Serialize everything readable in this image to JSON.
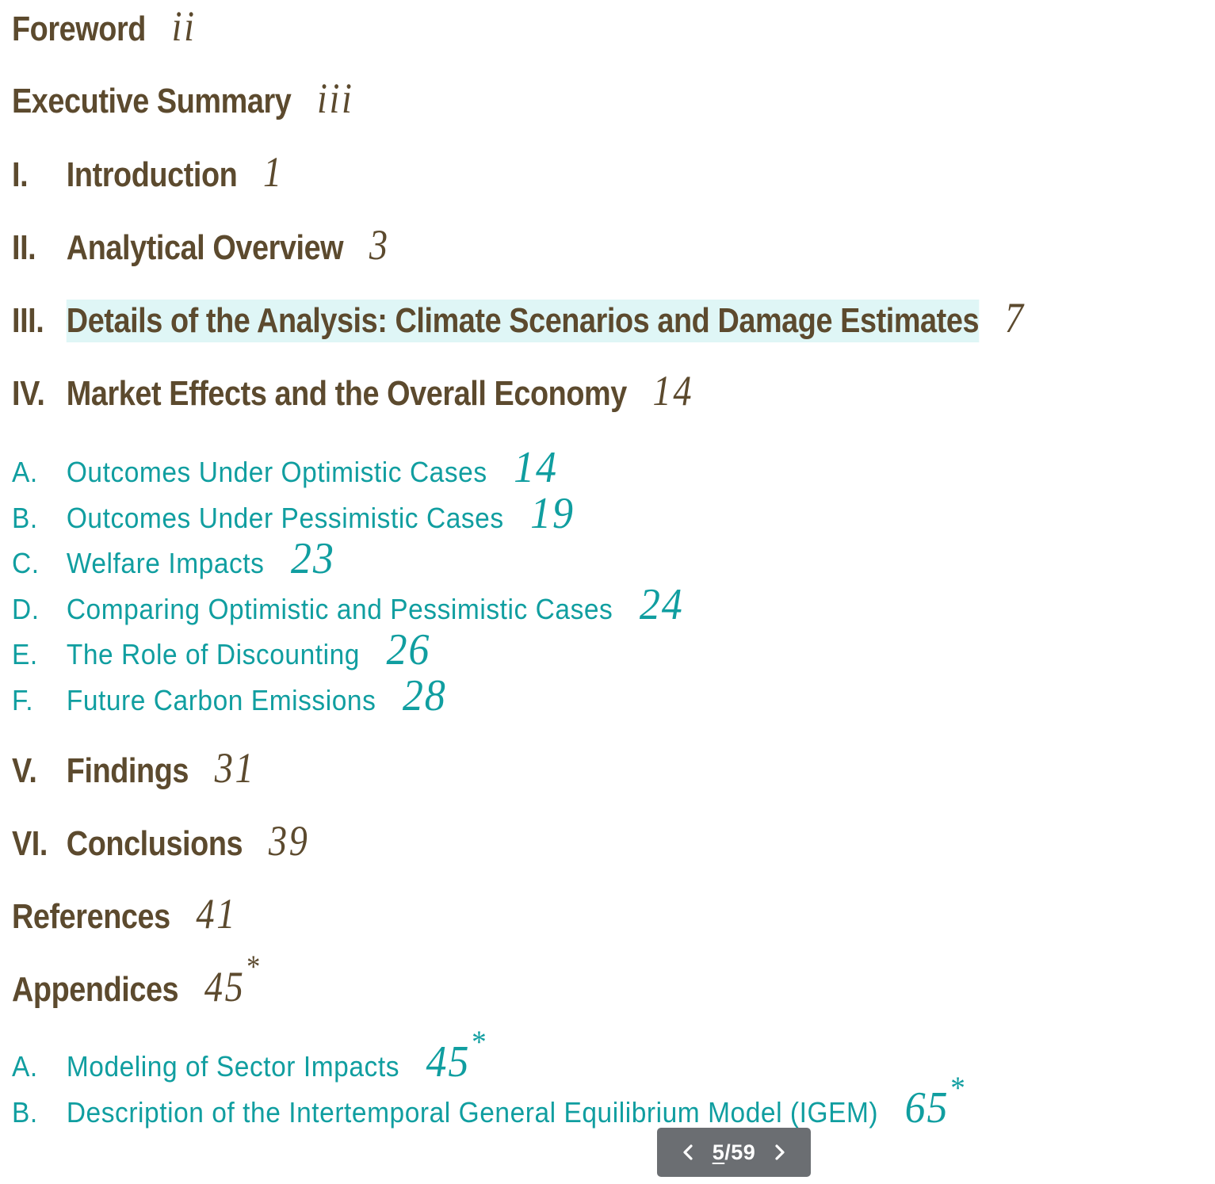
{
  "toc": {
    "foreword": {
      "label": "Foreword",
      "page": "ii"
    },
    "executive_summary": {
      "label": "Executive Summary",
      "page": "iii"
    },
    "sections": [
      {
        "num": "I.",
        "label": "Introduction",
        "page": "1"
      },
      {
        "num": "II.",
        "label": "Analytical Overview",
        "page": "3"
      },
      {
        "num": "III.",
        "label": "Details of the Analysis: Climate Scenarios and Damage Estimates",
        "page": "7"
      },
      {
        "num": "IV.",
        "label": "Market Effects and the Overall Economy",
        "page": "14"
      },
      {
        "num": "V.",
        "label": "Findings",
        "page": "31"
      },
      {
        "num": "VI.",
        "label": "Conclusions",
        "page": "39"
      }
    ],
    "section_iv_subs": [
      {
        "num": "A.",
        "label": "Outcomes Under Optimistic Cases",
        "page": "14"
      },
      {
        "num": "B.",
        "label": "Outcomes Under Pessimistic Cases",
        "page": "19"
      },
      {
        "num": "C.",
        "label": "Welfare Impacts",
        "page": "23"
      },
      {
        "num": "D.",
        "label": "Comparing Optimistic and Pessimistic Cases",
        "page": "24"
      },
      {
        "num": "E.",
        "label": "The Role of Discounting",
        "page": "26"
      },
      {
        "num": "F.",
        "label": "Future Carbon Emissions",
        "page": "28"
      }
    ],
    "references": {
      "label": "References",
      "page": "41"
    },
    "appendices": {
      "label": "Appendices",
      "page": "45",
      "mark": "*"
    },
    "appendix_subs": [
      {
        "num": "A.",
        "label": "Modeling of Sector Impacts",
        "page": "45",
        "mark": "*"
      },
      {
        "num": "B.",
        "label": "Description of the Intertemporal General Equilibrium Model (IGEM)",
        "page": "65",
        "mark": "*"
      }
    ]
  },
  "pager": {
    "current": "5",
    "separator": "/",
    "total": "59",
    "prev_icon": "chevron-left-icon",
    "next_icon": "chevron-right-icon"
  },
  "colors": {
    "main_text": "#5c4a2e",
    "sub_text": "#109ea0",
    "highlight": "#dff6f6",
    "pager_bg": "#6b6e72"
  }
}
